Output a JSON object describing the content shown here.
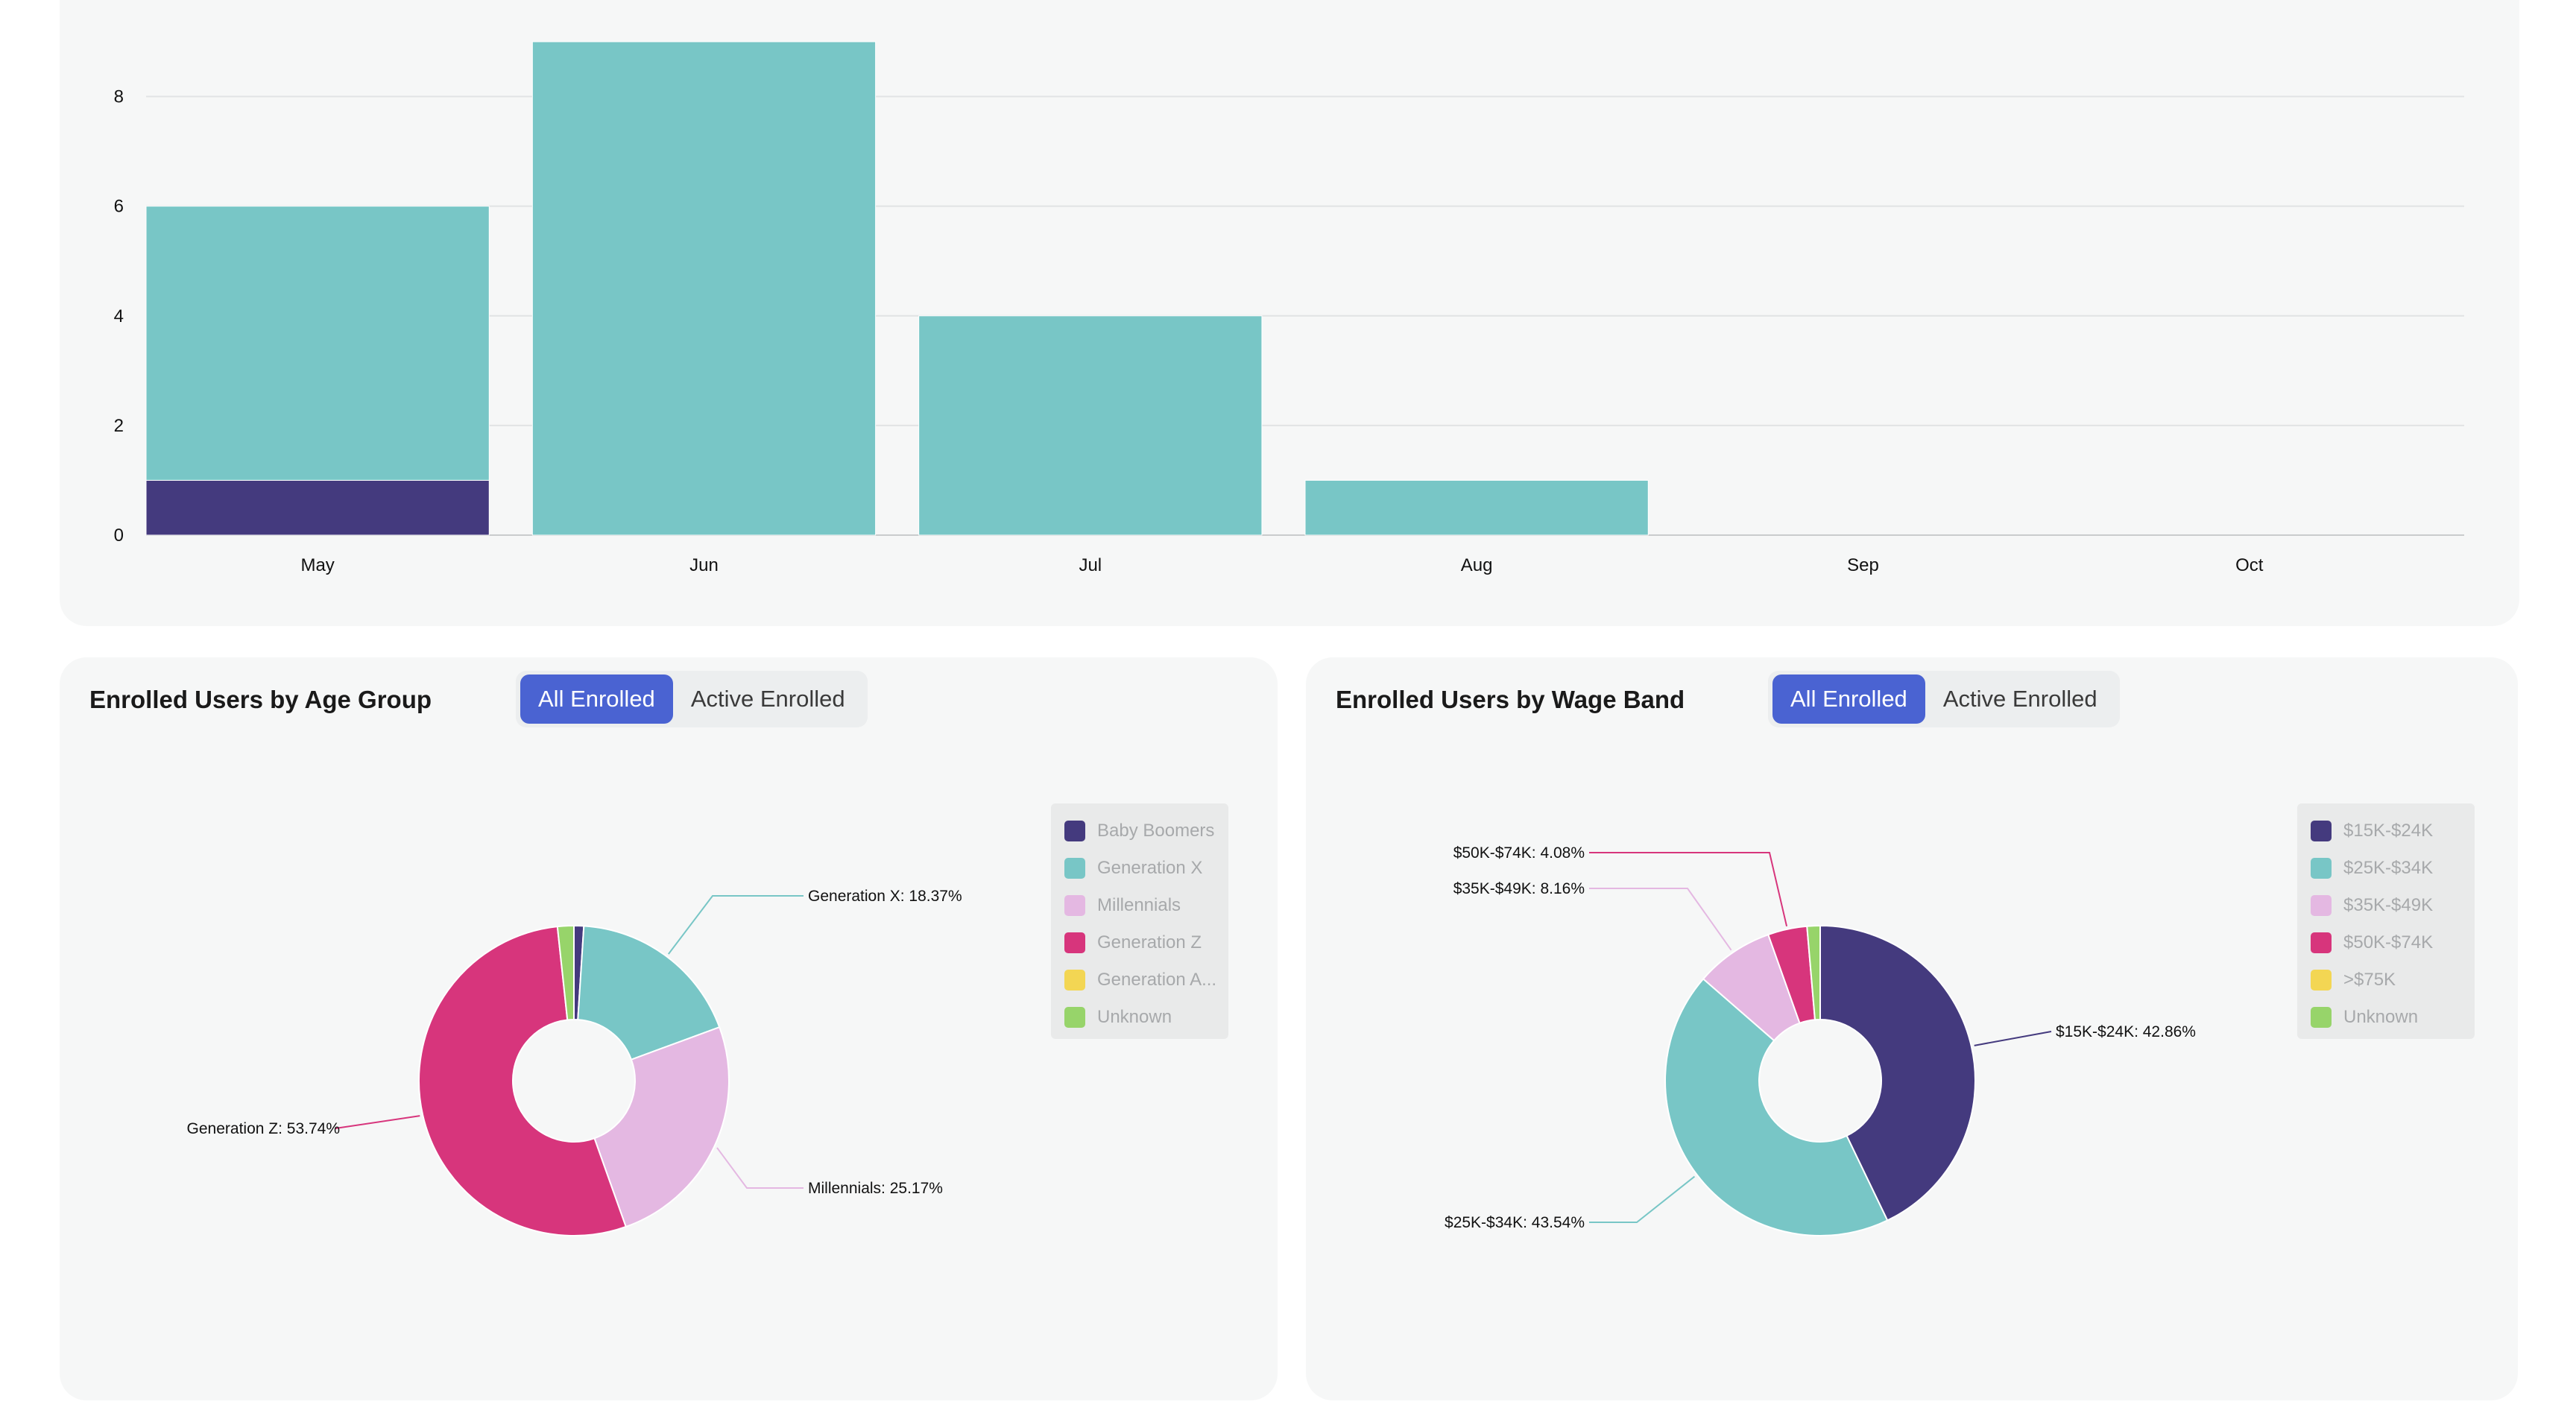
{
  "colors": {
    "teal": "#78c6c6",
    "purple": "#443a7e",
    "lavender": "#e4b8e2",
    "pink": "#d7357c",
    "yellow": "#f3d653",
    "green": "#97d46a",
    "accent": "#4a63d2"
  },
  "bar_chart": {
    "chart_data": {
      "type": "bar",
      "stacked": true,
      "categories": [
        "May",
        "Jun",
        "Jul",
        "Aug",
        "Sep",
        "Oct"
      ],
      "series": [
        {
          "color": "#443a7e",
          "values": [
            1,
            0,
            0,
            0,
            0,
            0
          ]
        },
        {
          "color": "#78c6c6",
          "values": [
            5,
            9,
            4,
            1,
            0,
            0
          ]
        }
      ],
      "y_ticks": [
        "0",
        "2",
        "4",
        "6",
        "8"
      ],
      "ylim": [
        0,
        9
      ],
      "grid": true
    }
  },
  "age_card": {
    "title": "Enrolled Users by Age Group",
    "toggle": {
      "all_label": "All Enrolled",
      "active_label": "Active Enrolled",
      "selected": "All Enrolled"
    },
    "chart_data": {
      "type": "pie",
      "donut": true,
      "slices": [
        {
          "name": "Baby Boomers",
          "value": 1.02,
          "color": "#443a7e"
        },
        {
          "name": "Generation X",
          "value": 18.37,
          "color": "#78c6c6",
          "label": "Generation X: 18.37%"
        },
        {
          "name": "Millennials",
          "value": 25.17,
          "color": "#e4b8e2",
          "label": "Millennials: 25.17%"
        },
        {
          "name": "Generation Z",
          "value": 53.74,
          "color": "#d7357c",
          "label": "Generation Z: 53.74%"
        },
        {
          "name": "Generation A...",
          "value": 0,
          "color": "#f3d653"
        },
        {
          "name": "Unknown",
          "value": 1.7,
          "color": "#97d46a"
        }
      ]
    }
  },
  "wage_card": {
    "title": "Enrolled Users by Wage Band",
    "toggle": {
      "all_label": "All Enrolled",
      "active_label": "Active Enrolled",
      "selected": "All Enrolled"
    },
    "chart_data": {
      "type": "pie",
      "donut": true,
      "slices": [
        {
          "name": "$15K-$24K",
          "value": 42.86,
          "color": "#443a7e",
          "label": "$15K-$24K: 42.86%"
        },
        {
          "name": "$25K-$34K",
          "value": 43.54,
          "color": "#78c6c6",
          "label": "$25K-$34K: 43.54%"
        },
        {
          "name": "$35K-$49K",
          "value": 8.16,
          "color": "#e4b8e2",
          "label": "$35K-$49K: 8.16%"
        },
        {
          "name": "$50K-$74K",
          "value": 4.08,
          "color": "#d7357c",
          "label": "$50K-$74K: 4.08%"
        },
        {
          "name": ">$75K",
          "value": 0,
          "color": "#f3d653"
        },
        {
          "name": "Unknown",
          "value": 1.36,
          "color": "#97d46a"
        }
      ]
    }
  }
}
